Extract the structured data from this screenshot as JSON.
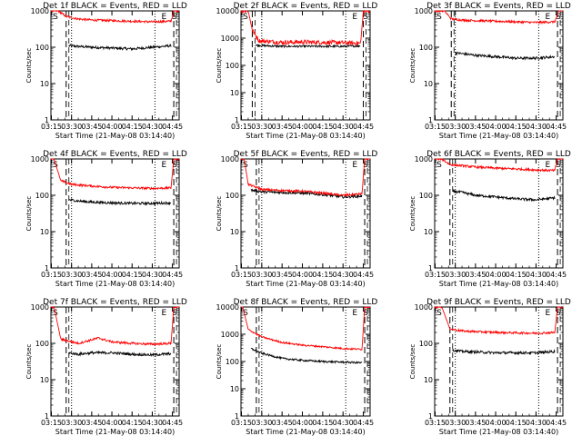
{
  "figure": {
    "x_ticks": [
      "03:15",
      "03:30",
      "03:45",
      "04:00",
      "04:15",
      "04:30",
      "04:45"
    ],
    "y_ticks": [
      "1",
      "10",
      "100",
      "1000"
    ],
    "xlabel": "Start Time (21-May-08 03:14:40)",
    "ylabel": "Counts/sec",
    "region_markers": [
      "S",
      "E",
      "S"
    ],
    "colors": {
      "events": "#000000",
      "lld": "#ff0000",
      "frame": "#000000"
    }
  },
  "chart_data": [
    {
      "type": "line",
      "title": "Det 1f BLACK = Events, RED = LLD",
      "xlabel": "Start Time (21-May-08 03:14:40)",
      "ylabel": "Counts/sec",
      "x_range": [
        "03:14:40",
        "04:50:00"
      ],
      "ylim": [
        1,
        1000
      ],
      "y_scale": "log",
      "dashed_lines": [
        "03:26",
        "04:46"
      ],
      "dotted_lines": [
        "03:30",
        "04:32"
      ],
      "series": [
        {
          "color": "#000000",
          "x": [
            "03:28",
            "03:35",
            "03:45",
            "04:00",
            "04:15",
            "04:30",
            "04:44"
          ],
          "values": [
            110,
            105,
            100,
            95,
            90,
            100,
            110
          ]
        },
        {
          "color": "#ff0000",
          "x": [
            "03:14:40",
            "03:20",
            "03:26",
            "03:35",
            "03:45",
            "04:00",
            "04:15",
            "04:30",
            "04:44",
            "04:46",
            "04:50"
          ],
          "values": [
            1000,
            1000,
            700,
            600,
            560,
            540,
            520,
            500,
            520,
            1000,
            1000
          ]
        }
      ]
    },
    {
      "type": "line",
      "title": "Det 2f BLACK = Events, RED = LLD",
      "xlabel": "Start Time (21-May-08 03:14:40)",
      "ylabel": "Counts/sec",
      "x_range": [
        "03:14:40",
        "04:50:00"
      ],
      "ylim": [
        1,
        10000
      ],
      "y_scale": "log",
      "dashed_lines": [
        "03:23",
        "04:45"
      ],
      "dotted_lines": [
        "03:30",
        "04:32"
      ],
      "series": [
        {
          "color": "#000000",
          "x": [
            "03:25",
            "03:35",
            "03:45",
            "04:00",
            "04:15",
            "04:30",
            "04:43"
          ],
          "values": [
            550,
            520,
            500,
            500,
            500,
            500,
            520
          ]
        },
        {
          "color": "#ff0000",
          "x": [
            "03:14:40",
            "03:20",
            "03:23",
            "03:28",
            "03:45",
            "04:00",
            "04:15",
            "04:30",
            "04:43",
            "04:45",
            "04:50"
          ],
          "values": [
            10000,
            10000,
            2000,
            800,
            700,
            720,
            700,
            680,
            650,
            10000,
            10000
          ]
        }
      ]
    },
    {
      "type": "line",
      "title": "Det 3f BLACK = Events, RED = LLD",
      "xlabel": "Start Time (21-May-08 03:14:40)",
      "ylabel": "Counts/sec",
      "x_range": [
        "03:14:40",
        "04:50:00"
      ],
      "ylim": [
        1,
        1000
      ],
      "y_scale": "log",
      "dashed_lines": [
        "03:27",
        "04:46"
      ],
      "dotted_lines": [
        "03:30",
        "04:32"
      ],
      "series": [
        {
          "color": "#000000",
          "x": [
            "03:30",
            "03:45",
            "04:00",
            "04:15",
            "04:30",
            "04:44"
          ],
          "values": [
            70,
            60,
            55,
            50,
            50,
            55
          ]
        },
        {
          "color": "#ff0000",
          "x": [
            "03:14:40",
            "03:22",
            "03:27",
            "03:35",
            "03:45",
            "04:00",
            "04:15",
            "04:30",
            "04:44",
            "04:47",
            "04:50"
          ],
          "values": [
            1000,
            1000,
            600,
            560,
            540,
            520,
            500,
            480,
            500,
            1000,
            1000
          ]
        }
      ]
    },
    {
      "type": "line",
      "title": "Det 4f BLACK = Events, RED = LLD",
      "xlabel": "Start Time (21-May-08 03:14:40)",
      "ylabel": "Counts/sec",
      "x_range": [
        "03:14:40",
        "04:50:00"
      ],
      "ylim": [
        1,
        1000
      ],
      "y_scale": "log",
      "dashed_lines": [
        "03:26",
        "04:46"
      ],
      "dotted_lines": [
        "03:30",
        "04:32"
      ],
      "series": [
        {
          "color": "#000000",
          "x": [
            "03:28",
            "03:35",
            "03:45",
            "04:00",
            "04:15",
            "04:30",
            "04:44"
          ],
          "values": [
            75,
            70,
            65,
            62,
            60,
            60,
            62
          ]
        },
        {
          "color": "#ff0000",
          "x": [
            "03:14:40",
            "03:17",
            "03:22",
            "03:30",
            "03:45",
            "04:00",
            "04:15",
            "04:30",
            "04:44",
            "04:46",
            "04:50"
          ],
          "values": [
            1000,
            1000,
            250,
            200,
            180,
            165,
            160,
            155,
            160,
            1000,
            1000
          ]
        }
      ]
    },
    {
      "type": "line",
      "title": "Det 5f BLACK = Events, RED = LLD",
      "xlabel": "Start Time (21-May-08 03:14:40)",
      "ylabel": "Counts/sec",
      "x_range": [
        "03:14:40",
        "04:50:00"
      ],
      "ylim": [
        1,
        1000
      ],
      "y_scale": "log",
      "dashed_lines": [
        "03:26",
        "04:46"
      ],
      "dotted_lines": [
        "03:30",
        "04:32"
      ],
      "series": [
        {
          "color": "#000000",
          "x": [
            "03:22",
            "03:30",
            "03:45",
            "04:00",
            "04:15",
            "04:30",
            "04:44"
          ],
          "values": [
            140,
            125,
            120,
            115,
            105,
            90,
            95
          ]
        },
        {
          "color": "#ff0000",
          "x": [
            "03:14:40",
            "03:17",
            "03:20",
            "03:30",
            "03:45",
            "04:00",
            "04:15",
            "04:30",
            "04:44",
            "04:46",
            "04:50"
          ],
          "values": [
            1000,
            1000,
            200,
            145,
            135,
            130,
            115,
            100,
            110,
            1000,
            1000
          ]
        }
      ]
    },
    {
      "type": "line",
      "title": "Det 6f BLACK = Events, RED = LLD",
      "xlabel": "Start Time (21-May-08 03:14:40)",
      "ylabel": "Counts/sec",
      "x_range": [
        "03:14:40",
        "04:50:00"
      ],
      "ylim": [
        1,
        1000
      ],
      "y_scale": "log",
      "dashed_lines": [
        "03:26",
        "04:46"
      ],
      "dotted_lines": [
        "03:30",
        "04:32"
      ],
      "series": [
        {
          "color": "#000000",
          "x": [
            "03:28",
            "03:35",
            "03:45",
            "04:00",
            "04:15",
            "04:30",
            "04:44"
          ],
          "values": [
            130,
            120,
            100,
            90,
            80,
            75,
            85
          ]
        },
        {
          "color": "#ff0000",
          "x": [
            "03:14:40",
            "03:20",
            "03:26",
            "03:35",
            "03:45",
            "04:00",
            "04:15",
            "04:30",
            "04:44",
            "04:46",
            "04:50"
          ],
          "values": [
            1000,
            1000,
            700,
            650,
            600,
            560,
            530,
            500,
            480,
            1000,
            1000
          ]
        }
      ]
    },
    {
      "type": "line",
      "title": "Det 7f BLACK = Events, RED = LLD",
      "xlabel": "Start Time (21-May-08 03:14:40)",
      "ylabel": "Counts/sec",
      "x_range": [
        "03:14:40",
        "04:50:00"
      ],
      "ylim": [
        1,
        1000
      ],
      "y_scale": "log",
      "dashed_lines": [
        "03:26",
        "04:46"
      ],
      "dotted_lines": [
        "03:30",
        "04:32"
      ],
      "series": [
        {
          "color": "#000000",
          "x": [
            "03:28",
            "03:35",
            "03:45",
            "04:00",
            "04:15",
            "04:30",
            "04:44"
          ],
          "values": [
            55,
            50,
            55,
            55,
            50,
            48,
            52
          ]
        },
        {
          "color": "#ff0000",
          "x": [
            "03:14:40",
            "03:17",
            "03:22",
            "03:35",
            "03:50",
            "04:00",
            "04:15",
            "04:30",
            "04:44",
            "04:46",
            "04:50"
          ],
          "values": [
            1000,
            1000,
            130,
            100,
            140,
            110,
            100,
            95,
            100,
            1000,
            1000
          ]
        }
      ]
    },
    {
      "type": "line",
      "title": "Det 8f BLACK = Events, RED = LLD",
      "xlabel": "Start Time (21-May-08 03:14:40)",
      "ylabel": "Counts/sec",
      "x_range": [
        "03:14:40",
        "04:50:00"
      ],
      "ylim": [
        1,
        10000
      ],
      "y_scale": "log",
      "dashed_lines": [
        "03:26",
        "04:46"
      ],
      "dotted_lines": [
        "03:30",
        "04:32"
      ],
      "series": [
        {
          "color": "#000000",
          "x": [
            "03:22",
            "03:30",
            "03:45",
            "04:00",
            "04:15",
            "04:30",
            "04:44"
          ],
          "values": [
            300,
            200,
            130,
            110,
            100,
            95,
            90
          ]
        },
        {
          "color": "#ff0000",
          "x": [
            "03:14:40",
            "03:16",
            "03:20",
            "03:30",
            "03:45",
            "04:00",
            "04:15",
            "04:30",
            "04:44",
            "04:46",
            "04:50"
          ],
          "values": [
            10000,
            10000,
            1500,
            800,
            500,
            400,
            350,
            300,
            280,
            10000,
            10000
          ]
        }
      ]
    },
    {
      "type": "line",
      "title": "Det 9f BLACK = Events, RED = LLD",
      "xlabel": "Start Time (21-May-08 03:14:40)",
      "ylabel": "Counts/sec",
      "x_range": [
        "03:14:40",
        "04:50:00"
      ],
      "ylim": [
        1,
        1000
      ],
      "y_scale": "log",
      "dashed_lines": [
        "03:26",
        "04:46"
      ],
      "dotted_lines": [
        "03:30",
        "04:32"
      ],
      "series": [
        {
          "color": "#000000",
          "x": [
            "03:28",
            "03:35",
            "03:45",
            "04:00",
            "04:15",
            "04:30",
            "04:44"
          ],
          "values": [
            65,
            60,
            58,
            55,
            55,
            55,
            60
          ]
        },
        {
          "color": "#ff0000",
          "x": [
            "03:14:40",
            "03:20",
            "03:26",
            "03:35",
            "03:45",
            "04:00",
            "04:15",
            "04:30",
            "04:44",
            "04:46",
            "04:50"
          ],
          "values": [
            1000,
            1000,
            250,
            220,
            210,
            200,
            195,
            190,
            200,
            1000,
            1000
          ]
        }
      ]
    }
  ]
}
